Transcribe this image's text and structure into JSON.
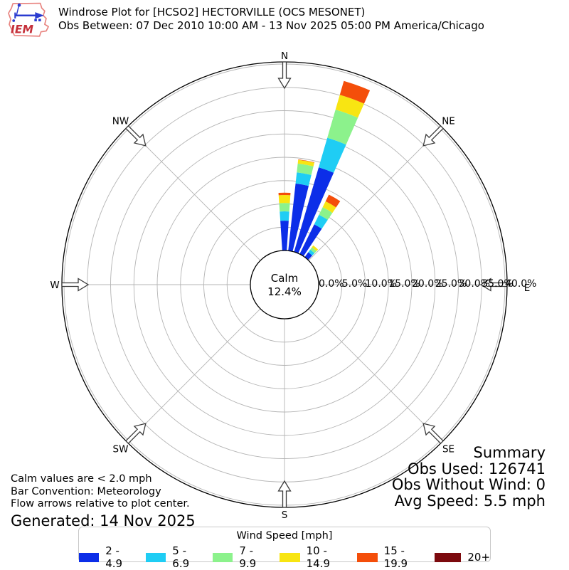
{
  "header": {
    "logo_text": "IEM",
    "title": "Windrose Plot for [HCSO2] HECTORVILLE (OCS MESONET)",
    "subtitle": "Obs Between: 07 Dec 2010 10:00 AM - 13 Nov 2025 05:00 PM America/Chicago"
  },
  "chart_data": {
    "type": "windrose",
    "units": "mph",
    "calm": {
      "label": "Calm",
      "percent": "12.4%"
    },
    "rings_percent": [
      5,
      10,
      15,
      20,
      25,
      30,
      35,
      40
    ],
    "tick_labels": [
      "0.0%",
      "5.0%",
      "10.0%",
      "15.0%",
      "20.0%",
      "25.0%",
      "30.0%",
      "35.0%",
      "40.0%"
    ],
    "compass": [
      {
        "label": "N",
        "angle": 0
      },
      {
        "label": "NE",
        "angle": 45
      },
      {
        "label": "E",
        "angle": 90
      },
      {
        "label": "SE",
        "angle": 135
      },
      {
        "label": "S",
        "angle": 180
      },
      {
        "label": "SW",
        "angle": 225
      },
      {
        "label": "W",
        "angle": 270
      },
      {
        "label": "NW",
        "angle": 315
      }
    ],
    "speed_bins": [
      {
        "label": "2 - 4.9",
        "color": "#0c2ee8"
      },
      {
        "label": "5 - 6.9",
        "color": "#1fcdf4"
      },
      {
        "label": "7 - 9.9",
        "color": "#8cf28c"
      },
      {
        "label": "10 - 14.9",
        "color": "#f8e512"
      },
      {
        "label": "15 - 19.9",
        "color": "#f44e0a"
      },
      {
        "label": "20+",
        "color": "#7c0a0e"
      }
    ],
    "bar_width_deg": 7.5,
    "bars": [
      {
        "dir_deg": 0,
        "values": [
          6.4,
          2.0,
          1.8,
          1.7,
          0.5,
          0
        ]
      },
      {
        "dir_deg": 10,
        "values": [
          14.5,
          2.4,
          1.9,
          0.8,
          0.1,
          0
        ]
      },
      {
        "dir_deg": 20,
        "values": [
          18.9,
          6.6,
          6.3,
          3.3,
          3.1,
          0
        ]
      },
      {
        "dir_deg": 30,
        "values": [
          7.1,
          2.3,
          1.8,
          1.4,
          1.6,
          0
        ]
      },
      {
        "dir_deg": 40,
        "values": [
          1.3,
          0.7,
          0.6,
          0.5,
          0,
          0
        ]
      }
    ],
    "grid_color": "#b4b4b4"
  },
  "notes": {
    "lines": [
      "Calm values are < 2.0 mph",
      "Bar Convention: Meteorology",
      "Flow arrows relative to plot center."
    ],
    "generated": "Generated: 14 Nov 2025"
  },
  "summary": {
    "title": "Summary",
    "lines": [
      "Obs Used: 126741",
      "Obs Without Wind: 0",
      "Avg Speed: 5.5 mph"
    ]
  },
  "legend": {
    "title": "Wind Speed [mph]",
    "items": [
      {
        "label": "2 - 4.9",
        "color": "#0c2ee8"
      },
      {
        "label": "5 - 6.9",
        "color": "#1fcdf4"
      },
      {
        "label": "7 - 9.9",
        "color": "#8cf28c"
      },
      {
        "label": "10 - 14.9",
        "color": "#f8e512"
      },
      {
        "label": "15 - 19.9",
        "color": "#f44e0a"
      },
      {
        "label": "20+",
        "color": "#7c0a0e"
      }
    ]
  }
}
